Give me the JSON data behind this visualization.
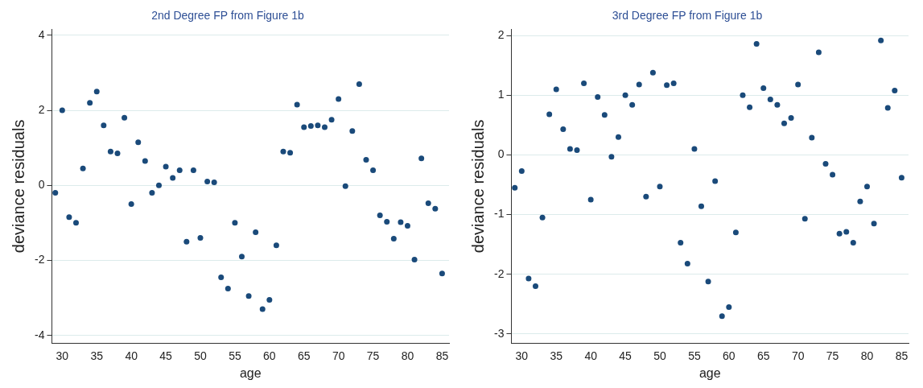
{
  "chart_data": [
    {
      "type": "scatter",
      "title": "2nd Degree FP from Figure 1b",
      "xlabel": "age",
      "ylabel": "deviance residuals",
      "grid": "y",
      "marker": "circle",
      "legend": false,
      "x": [
        29,
        30,
        31,
        32,
        33,
        34,
        35,
        36,
        37,
        38,
        39,
        40,
        41,
        42,
        43,
        44,
        45,
        46,
        47,
        48,
        49,
        50,
        51,
        52,
        53,
        54,
        55,
        56,
        57,
        58,
        59,
        60,
        61,
        62,
        63,
        64,
        65,
        66,
        67,
        68,
        69,
        70,
        71,
        72,
        73,
        74,
        75,
        76,
        77,
        78,
        79,
        80,
        81,
        82,
        83,
        84,
        85
      ],
      "series": [
        {
          "color": "#1a4a7a",
          "values": [
            -0.2,
            2.0,
            -0.85,
            -1.0,
            0.45,
            2.2,
            2.5,
            1.6,
            0.9,
            0.85,
            1.8,
            -0.5,
            1.15,
            0.65,
            -0.2,
            0,
            0.5,
            0.2,
            0.4,
            -1.5,
            0.4,
            -1.4,
            0.1,
            0.08,
            -2.45,
            -2.75,
            -1.0,
            -1.9,
            -2.95,
            -1.25,
            -3.3,
            -3.05,
            -1.6,
            0.9,
            0.87,
            2.15,
            1.55,
            1.58,
            1.6,
            1.55,
            1.75,
            2.3,
            -0.02,
            1.45,
            2.7,
            0.68,
            0.4,
            -0.8,
            -0.97,
            -1.42,
            -0.98,
            -1.08,
            -1.98,
            0.72,
            -0.48,
            -0.62,
            -2.35
          ]
        }
      ],
      "xlim": [
        28.5,
        86
      ],
      "xticks": [
        30,
        35,
        40,
        45,
        50,
        55,
        60,
        65,
        70,
        75,
        80,
        85
      ],
      "ylim": [
        -4.2,
        4.15
      ],
      "yticks": [
        -4,
        -2,
        0,
        2,
        4
      ]
    },
    {
      "type": "scatter",
      "title": "3rd Degree FP from Figure 1b",
      "xlabel": "age",
      "ylabel": "deviance residuals",
      "grid": "y",
      "marker": "circle",
      "legend": false,
      "x": [
        29,
        30,
        31,
        32,
        33,
        34,
        35,
        36,
        37,
        38,
        39,
        40,
        41,
        42,
        43,
        44,
        45,
        46,
        47,
        48,
        49,
        50,
        51,
        52,
        53,
        54,
        55,
        56,
        57,
        58,
        59,
        60,
        61,
        62,
        63,
        64,
        65,
        66,
        67,
        68,
        69,
        70,
        71,
        72,
        73,
        74,
        75,
        76,
        77,
        78,
        79,
        80,
        81,
        82,
        83,
        84,
        85
      ],
      "series": [
        {
          "color": "#1a4a7a",
          "values": [
            -0.55,
            -0.27,
            -2.07,
            -2.2,
            -1.05,
            0.68,
            1.1,
            0.43,
            0.1,
            0.08,
            1.2,
            -0.75,
            0.97,
            0.67,
            -0.03,
            0.3,
            1.0,
            0.84,
            1.18,
            -0.7,
            1.38,
            -0.53,
            1.17,
            1.2,
            -1.47,
            -1.82,
            0.1,
            -0.86,
            -2.12,
            -0.44,
            -2.7,
            -2.55,
            -1.3,
            1.0,
            0.8,
            1.86,
            1.12,
            0.93,
            0.84,
            0.53,
            0.62,
            1.18,
            -1.07,
            0.29,
            1.72,
            -0.15,
            -0.33,
            -1.32,
            -1.29,
            -1.47,
            -0.78,
            -0.53,
            -1.15,
            1.92,
            0.79,
            1.08,
            -0.38
          ]
        }
      ],
      "xlim": [
        28.5,
        86
      ],
      "xticks": [
        30,
        35,
        40,
        45,
        50,
        55,
        60,
        65,
        70,
        75,
        80,
        85
      ],
      "ylim": [
        -3.15,
        2.1
      ],
      "yticks": [
        -3,
        -2,
        -1,
        0,
        1,
        2
      ]
    }
  ]
}
